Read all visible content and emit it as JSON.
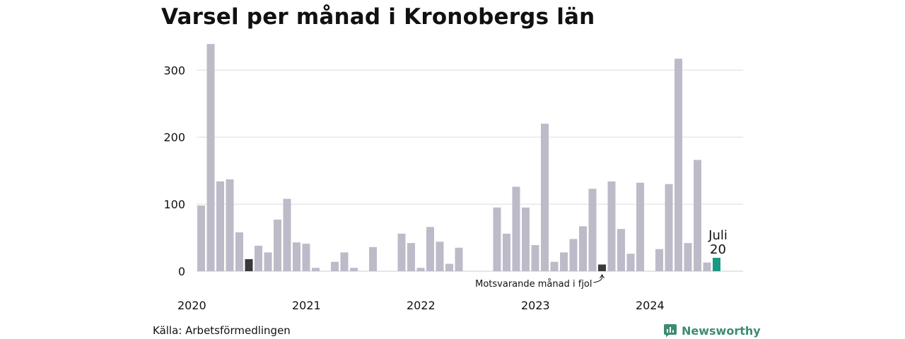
{
  "chart_data": {
    "type": "bar",
    "title": "Varsel per månad i Kronobergs län",
    "xlabel": "",
    "ylabel": "",
    "ylim": [
      0,
      340
    ],
    "yticks": [
      0,
      100,
      200,
      300
    ],
    "year_labels": [
      {
        "label": "2020",
        "month_index": 0
      },
      {
        "label": "2021",
        "month_index": 12
      },
      {
        "label": "2022",
        "month_index": 24
      },
      {
        "label": "2023",
        "month_index": 36
      },
      {
        "label": "2024",
        "month_index": 48
      }
    ],
    "grid": true,
    "values": [
      98,
      339,
      134,
      137,
      58,
      18,
      38,
      28,
      77,
      108,
      43,
      41,
      5,
      0,
      14,
      28,
      5,
      0,
      36,
      0,
      0,
      56,
      42,
      5,
      66,
      44,
      11,
      35,
      0,
      0,
      0,
      95,
      56,
      126,
      95,
      39,
      220,
      14,
      28,
      48,
      67,
      123,
      10,
      134,
      63,
      26,
      132,
      0,
      33,
      130,
      317,
      42,
      166,
      13,
      20
    ],
    "highlight": {
      "index": 54,
      "month": "Juli",
      "value": 20,
      "color": "#1a9882"
    },
    "comparison": {
      "indices": [
        5,
        42
      ],
      "color": "#3a3a3a",
      "annotation": "Motsvarande månad i fjol",
      "annotation_index": 42
    },
    "bar_color": "#bdbbc8"
  },
  "footer": {
    "source": "Källa: Arbetsförmedlingen",
    "brand": "Newsworthy"
  },
  "colors": {
    "brand": "#3d8b74",
    "grid": "#dcdcdc",
    "axis": "#cccccc"
  }
}
